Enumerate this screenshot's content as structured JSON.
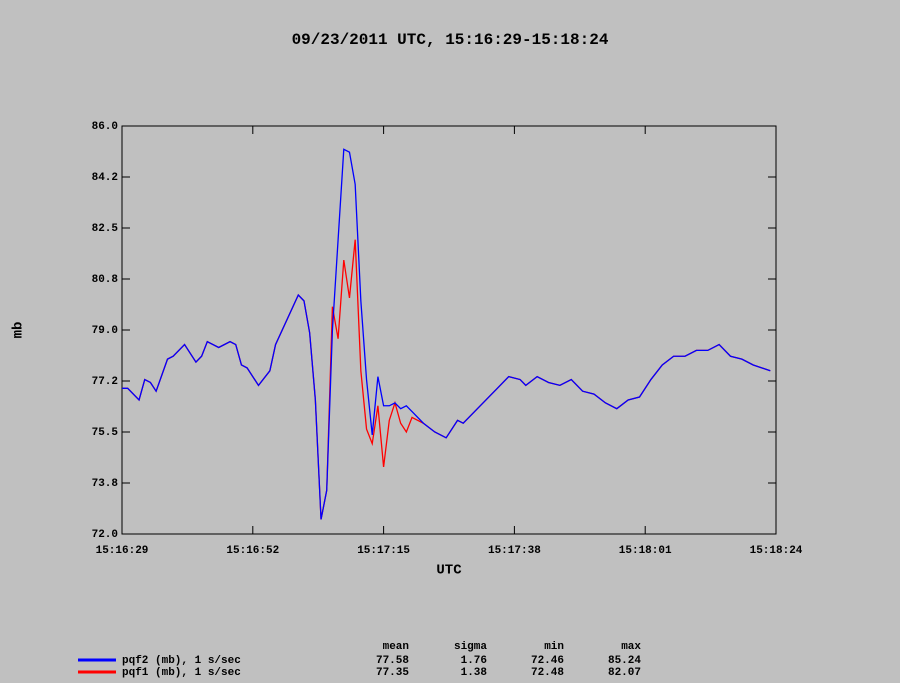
{
  "chart_data": {
    "type": "line",
    "title": "09/23/2011  UTC, 15:16:29-15:18:24",
    "x_label": "UTC",
    "y_label": "mb",
    "x": [
      "15:16:29",
      "15:16:30",
      "15:16:32",
      "15:16:33",
      "15:16:34",
      "15:16:35",
      "15:16:37",
      "15:16:38",
      "15:16:40",
      "15:16:42",
      "15:16:43",
      "15:16:44",
      "15:16:46",
      "15:16:48",
      "15:16:49",
      "15:16:50",
      "15:16:51",
      "15:16:53",
      "15:16:55",
      "15:16:56",
      "15:17:00",
      "15:17:01",
      "15:17:02",
      "15:17:03",
      "15:17:04",
      "15:17:05",
      "15:17:06",
      "15:17:07",
      "15:17:08",
      "15:17:09",
      "15:17:10",
      "15:17:11",
      "15:17:12",
      "15:17:13",
      "15:17:14",
      "15:17:15",
      "15:17:16",
      "15:17:17",
      "15:17:18",
      "15:17:19",
      "15:17:20",
      "15:17:22",
      "15:17:24",
      "15:17:26",
      "15:17:28",
      "15:17:29",
      "15:17:31",
      "15:17:33",
      "15:17:35",
      "15:17:37",
      "15:17:39",
      "15:17:40",
      "15:17:42",
      "15:17:44",
      "15:17:46",
      "15:17:48",
      "15:17:50",
      "15:17:52",
      "15:17:54",
      "15:17:56",
      "15:17:58",
      "15:18:00",
      "15:18:02",
      "15:18:04",
      "15:18:06",
      "15:18:08",
      "15:18:10",
      "15:18:12",
      "15:18:14",
      "15:18:16",
      "15:18:18",
      "15:18:20",
      "15:18:23"
    ],
    "series": [
      {
        "name": "pqf1 (mb), 1 s/sec",
        "color": "#ff0000",
        "stats": [
          77.35,
          1.38,
          72.48,
          82.07
        ],
        "values": [
          77.0,
          77.0,
          76.6,
          77.3,
          77.2,
          76.9,
          78.0,
          78.1,
          78.5,
          77.9,
          78.1,
          78.6,
          78.4,
          78.6,
          78.5,
          77.8,
          77.7,
          77.1,
          77.6,
          78.5,
          80.2,
          80.0,
          78.9,
          76.6,
          72.5,
          73.5,
          79.8,
          78.7,
          81.4,
          80.1,
          82.1,
          77.6,
          75.6,
          75.1,
          76.4,
          74.3,
          75.9,
          76.5,
          75.8,
          75.5,
          76.0,
          75.8,
          75.5,
          75.3,
          75.9,
          75.8,
          76.2,
          76.6,
          77.0,
          77.4,
          77.3,
          77.1,
          77.4,
          77.2,
          77.1,
          77.3,
          76.9,
          76.8,
          76.5,
          76.3,
          76.6,
          76.7,
          77.3,
          77.8,
          78.1,
          78.1,
          78.3,
          78.3,
          78.5,
          78.1,
          78.0,
          77.8,
          77.6
        ]
      },
      {
        "name": "pqf2 (mb), 1 s/sec",
        "color": "#0000ff",
        "stats": [
          77.58,
          1.76,
          72.46,
          85.24
        ],
        "values": [
          77.0,
          77.0,
          76.6,
          77.3,
          77.2,
          76.9,
          78.0,
          78.1,
          78.5,
          77.9,
          78.1,
          78.6,
          78.4,
          78.6,
          78.5,
          77.8,
          77.7,
          77.1,
          77.6,
          78.5,
          80.2,
          80.0,
          78.9,
          76.6,
          72.5,
          73.5,
          79.0,
          82.1,
          85.2,
          85.1,
          84.0,
          80.0,
          77.3,
          75.4,
          77.4,
          76.4,
          76.4,
          76.5,
          76.3,
          76.4,
          76.2,
          75.8,
          75.5,
          75.3,
          75.9,
          75.8,
          76.2,
          76.6,
          77.0,
          77.4,
          77.3,
          77.1,
          77.4,
          77.2,
          77.1,
          77.3,
          76.9,
          76.8,
          76.5,
          76.3,
          76.6,
          76.7,
          77.3,
          77.8,
          78.1,
          78.1,
          78.3,
          78.3,
          78.5,
          78.1,
          78.0,
          77.8,
          77.6
        ]
      }
    ],
    "stats_columns": [
      "mean",
      "sigma",
      "min",
      "max"
    ],
    "xlim": [
      "15:16:29",
      "15:18:24"
    ],
    "xticks": [
      "15:16:29",
      "15:16:52",
      "15:17:15",
      "15:17:38",
      "15:18:01",
      "15:18:24"
    ],
    "ylim": [
      72,
      86
    ],
    "yticks": [
      {
        "value": 72,
        "label": "72.0"
      },
      {
        "value": 73.75,
        "label": "73.8"
      },
      {
        "value": 75.5,
        "label": "75.5"
      },
      {
        "value": 77.25,
        "label": "77.2"
      },
      {
        "value": 79,
        "label": "79.0"
      },
      {
        "value": 80.75,
        "label": "80.8"
      },
      {
        "value": 82.5,
        "label": "82.5"
      },
      {
        "value": 84.25,
        "label": "84.2"
      },
      {
        "value": 86,
        "label": "86.0"
      }
    ]
  }
}
